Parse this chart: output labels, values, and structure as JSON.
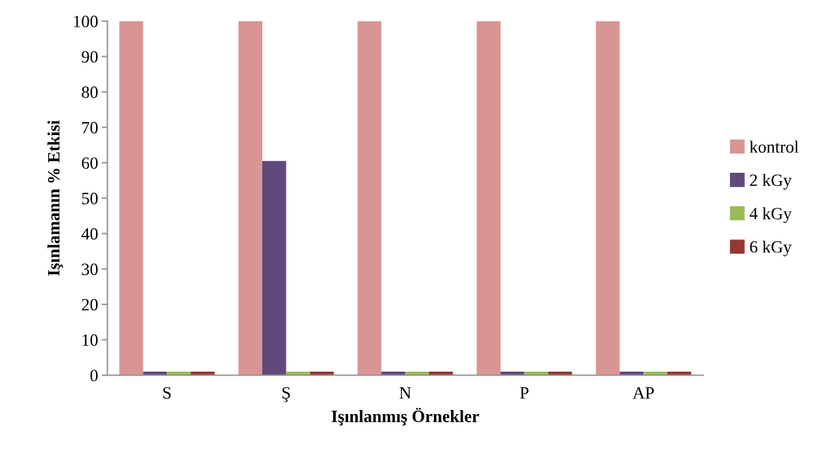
{
  "chart_data": {
    "type": "bar",
    "xlabel": "Işınlanmış Örnekler",
    "ylabel": "Işınlamanın % Etkisi",
    "categories": [
      "S",
      "Ş",
      "N",
      "P",
      "AP"
    ],
    "series": [
      {
        "name": "kontrol",
        "color": "#d99594",
        "values": [
          100,
          100,
          100,
          100,
          100
        ]
      },
      {
        "name": "2 kGy",
        "color": "#604a7b",
        "values": [
          1,
          60.5,
          1,
          1,
          1
        ]
      },
      {
        "name": "4 kGy",
        "color": "#9bbb59",
        "values": [
          1,
          1,
          1,
          1,
          1
        ]
      },
      {
        "name": "6 kGy",
        "color": "#953735",
        "values": [
          1,
          1,
          1,
          1,
          1
        ]
      }
    ],
    "ylim": [
      0,
      100
    ],
    "yticks": [
      0,
      10,
      20,
      30,
      40,
      50,
      60,
      70,
      80,
      90,
      100
    ],
    "grid": false,
    "legend": "right"
  }
}
